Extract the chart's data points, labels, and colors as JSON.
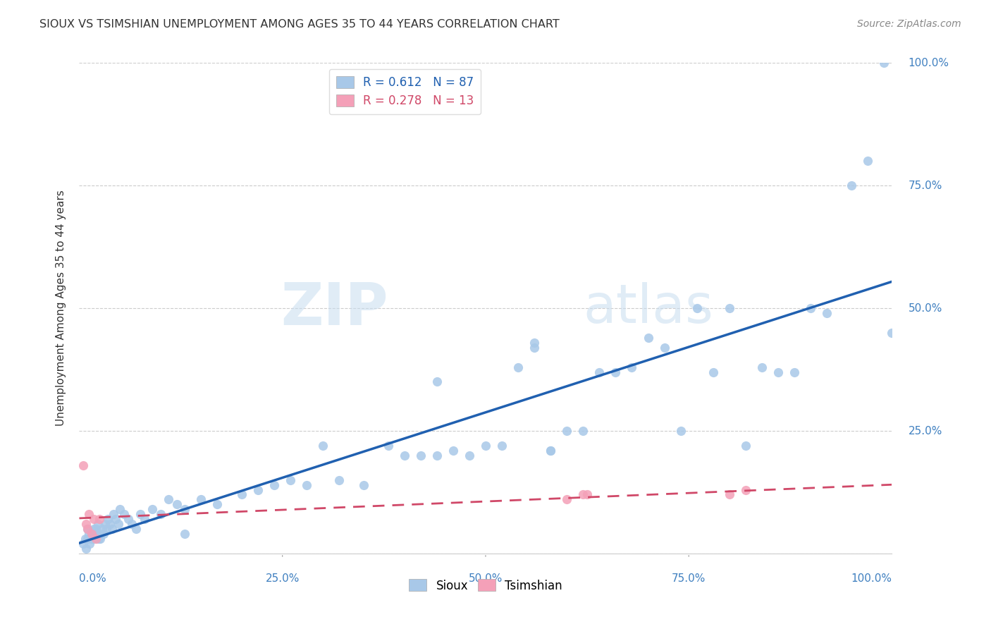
{
  "title": "SIOUX VS TSIMSHIAN UNEMPLOYMENT AMONG AGES 35 TO 44 YEARS CORRELATION CHART",
  "source": "Source: ZipAtlas.com",
  "ylabel": "Unemployment Among Ages 35 to 44 years",
  "sioux_r": 0.612,
  "sioux_n": 87,
  "tsimshian_r": 0.278,
  "tsimshian_n": 13,
  "sioux_color": "#a8c8e8",
  "sioux_line_color": "#2060b0",
  "tsimshian_color": "#f4a0b8",
  "tsimshian_line_color": "#d04868",
  "watermark_zip": "ZIP",
  "watermark_atlas": "atlas",
  "sioux_x": [
    0.005,
    0.007,
    0.008,
    0.01,
    0.01,
    0.012,
    0.013,
    0.015,
    0.016,
    0.017,
    0.018,
    0.018,
    0.02,
    0.02,
    0.022,
    0.023,
    0.024,
    0.025,
    0.026,
    0.028,
    0.03,
    0.032,
    0.033,
    0.035,
    0.038,
    0.04,
    0.042,
    0.045,
    0.048,
    0.05,
    0.055,
    0.06,
    0.065,
    0.07,
    0.075,
    0.08,
    0.09,
    0.1,
    0.11,
    0.12,
    0.13,
    0.15,
    0.17,
    0.2,
    0.22,
    0.24,
    0.26,
    0.28,
    0.3,
    0.32,
    0.35,
    0.38,
    0.4,
    0.42,
    0.44,
    0.46,
    0.48,
    0.5,
    0.52,
    0.54,
    0.56,
    0.58,
    0.6,
    0.62,
    0.64,
    0.66,
    0.68,
    0.7,
    0.72,
    0.74,
    0.76,
    0.78,
    0.8,
    0.82,
    0.84,
    0.86,
    0.88,
    0.9,
    0.92,
    0.95,
    0.97,
    0.99,
    1.0,
    0.56,
    0.58,
    0.44,
    0.13
  ],
  "sioux_y": [
    0.02,
    0.03,
    0.01,
    0.03,
    0.05,
    0.04,
    0.02,
    0.03,
    0.04,
    0.03,
    0.05,
    0.04,
    0.03,
    0.05,
    0.04,
    0.06,
    0.03,
    0.04,
    0.03,
    0.05,
    0.04,
    0.06,
    0.05,
    0.07,
    0.06,
    0.05,
    0.08,
    0.07,
    0.06,
    0.09,
    0.08,
    0.07,
    0.06,
    0.05,
    0.08,
    0.07,
    0.09,
    0.08,
    0.11,
    0.1,
    0.09,
    0.11,
    0.1,
    0.12,
    0.13,
    0.14,
    0.15,
    0.14,
    0.22,
    0.15,
    0.14,
    0.22,
    0.2,
    0.2,
    0.2,
    0.21,
    0.2,
    0.22,
    0.22,
    0.38,
    0.42,
    0.21,
    0.25,
    0.25,
    0.37,
    0.37,
    0.38,
    0.44,
    0.42,
    0.25,
    0.5,
    0.37,
    0.5,
    0.22,
    0.38,
    0.37,
    0.37,
    0.5,
    0.49,
    0.75,
    0.8,
    1.0,
    0.45,
    0.43,
    0.21,
    0.35,
    0.04
  ],
  "tsimshian_x": [
    0.005,
    0.008,
    0.01,
    0.012,
    0.015,
    0.018,
    0.02,
    0.025,
    0.6,
    0.62,
    0.625,
    0.8,
    0.82
  ],
  "tsimshian_y": [
    0.18,
    0.06,
    0.05,
    0.08,
    0.04,
    0.07,
    0.03,
    0.07,
    0.11,
    0.12,
    0.12,
    0.12,
    0.13
  ],
  "xlim": [
    0.0,
    1.0
  ],
  "ylim": [
    0.0,
    1.0
  ],
  "xticks": [
    0.0,
    0.25,
    0.5,
    0.75,
    1.0
  ],
  "yticks": [
    0.0,
    0.25,
    0.5,
    0.75,
    1.0
  ],
  "xticklabels_inner": [
    "25.0%",
    "50.0%",
    "75.0%"
  ],
  "grid_color": "#cccccc",
  "background_color": "#ffffff"
}
